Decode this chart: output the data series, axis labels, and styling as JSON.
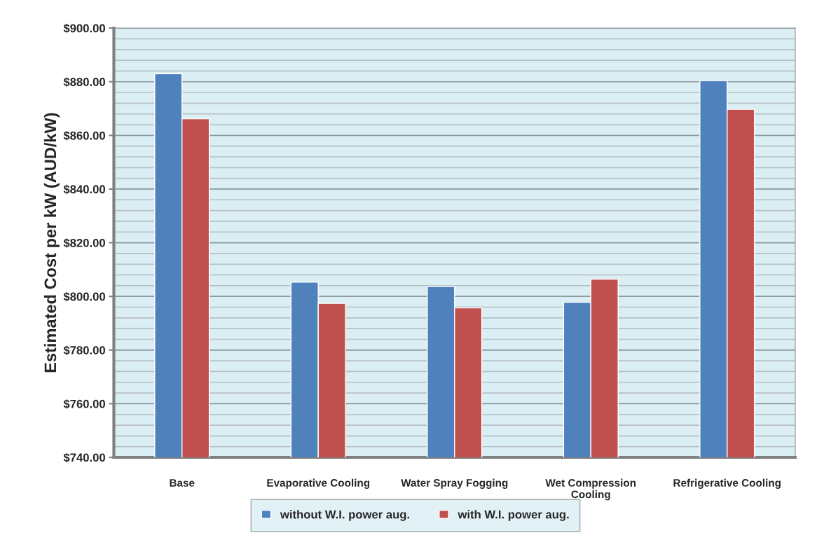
{
  "chart_data": {
    "type": "bar",
    "ylabel": "Estimated Cost per kW (AUD/kW)",
    "categories": [
      "Base",
      "Evaporative Cooling",
      "Water Spray Fogging",
      "Wet Compression\nCooling",
      "Refrigerative Cooling"
    ],
    "series": [
      {
        "name": "without W.I. power aug.",
        "color": "#4f81bd",
        "values": [
          883.0,
          805.3,
          803.7,
          797.8,
          880.4
        ]
      },
      {
        "name": "with W.I. power aug.",
        "color": "#c0504d",
        "values": [
          866.2,
          797.4,
          795.7,
          806.4,
          869.7
        ]
      }
    ],
    "ylim": [
      740,
      900
    ],
    "yticks": [
      {
        "value": 740,
        "label": "$740.00"
      },
      {
        "value": 744,
        "label": null
      },
      {
        "value": 748,
        "label": null
      },
      {
        "value": 752,
        "label": null
      },
      {
        "value": 756,
        "label": null
      },
      {
        "value": 760,
        "label": "$760.00"
      },
      {
        "value": 764,
        "label": null
      },
      {
        "value": 768,
        "label": null
      },
      {
        "value": 772,
        "label": null
      },
      {
        "value": 776,
        "label": null
      },
      {
        "value": 780,
        "label": "$780.00"
      },
      {
        "value": 784,
        "label": null
      },
      {
        "value": 788,
        "label": null
      },
      {
        "value": 792,
        "label": null
      },
      {
        "value": 796,
        "label": null
      },
      {
        "value": 800,
        "label": "$800.00"
      },
      {
        "value": 804,
        "label": null
      },
      {
        "value": 808,
        "label": null
      },
      {
        "value": 812,
        "label": null
      },
      {
        "value": 816,
        "label": null
      },
      {
        "value": 820,
        "label": "$820.00"
      },
      {
        "value": 824,
        "label": null
      },
      {
        "value": 828,
        "label": null
      },
      {
        "value": 832,
        "label": null
      },
      {
        "value": 836,
        "label": null
      },
      {
        "value": 840,
        "label": "$840.00"
      },
      {
        "value": 844,
        "label": null
      },
      {
        "value": 848,
        "label": null
      },
      {
        "value": 852,
        "label": null
      },
      {
        "value": 856,
        "label": null
      },
      {
        "value": 860,
        "label": "$860.00"
      },
      {
        "value": 864,
        "label": null
      },
      {
        "value": 868,
        "label": null
      },
      {
        "value": 872,
        "label": null
      },
      {
        "value": 876,
        "label": null
      },
      {
        "value": 880,
        "label": "$880.00"
      },
      {
        "value": 884,
        "label": null
      },
      {
        "value": 888,
        "label": null
      },
      {
        "value": 892,
        "label": null
      },
      {
        "value": 896,
        "label": null
      },
      {
        "value": 900,
        "label": "$900.00"
      }
    ],
    "grid": "y",
    "legend": "bottom"
  }
}
